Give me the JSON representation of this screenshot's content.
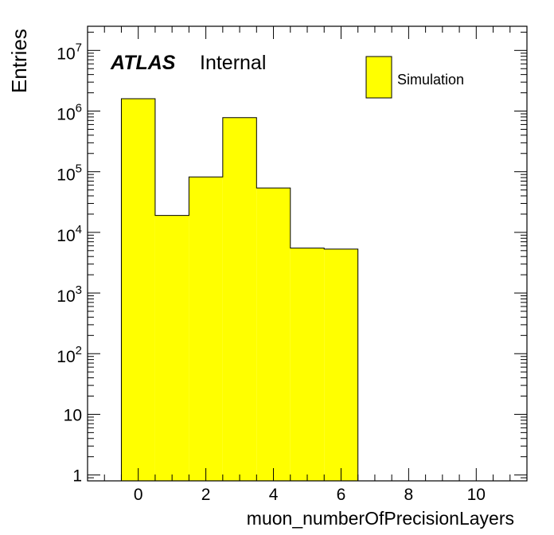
{
  "chart_data": {
    "type": "bar",
    "histogram": true,
    "bin_edges": [
      -0.5,
      0.5,
      1.5,
      2.5,
      3.5,
      4.5,
      5.5,
      6.5
    ],
    "values": [
      1600000,
      19000,
      82000,
      780000,
      54000,
      5500,
      5300
    ],
    "xlim": [
      -1.5,
      11.5
    ],
    "ylim": [
      0.8,
      25000000
    ],
    "yscale": "log",
    "xticks": [
      0,
      2,
      4,
      6,
      8,
      10
    ],
    "xtick_labels": [
      "0",
      "2",
      "4",
      "6",
      "8",
      "10"
    ],
    "yticks": [
      {
        "value": 1,
        "base": "1",
        "exp": ""
      },
      {
        "value": 10,
        "base": "10",
        "exp": ""
      },
      {
        "value": 100,
        "base": "10",
        "exp": "2"
      },
      {
        "value": 1000,
        "base": "10",
        "exp": "3"
      },
      {
        "value": 10000,
        "base": "10",
        "exp": "4"
      },
      {
        "value": 100000,
        "base": "10",
        "exp": "5"
      },
      {
        "value": 1000000,
        "base": "10",
        "exp": "6"
      },
      {
        "value": 10000000,
        "base": "10",
        "exp": "7"
      }
    ],
    "xlabel": "muon_numberOfPrecisionLayers",
    "ylabel": "Entries",
    "series": [
      {
        "name": "Simulation",
        "color": "#ffff00",
        "edge_color": "#000000"
      }
    ],
    "legend_position": "top-right",
    "grid": false
  },
  "labels": {
    "atlas": "ATLAS",
    "status": "Internal"
  }
}
